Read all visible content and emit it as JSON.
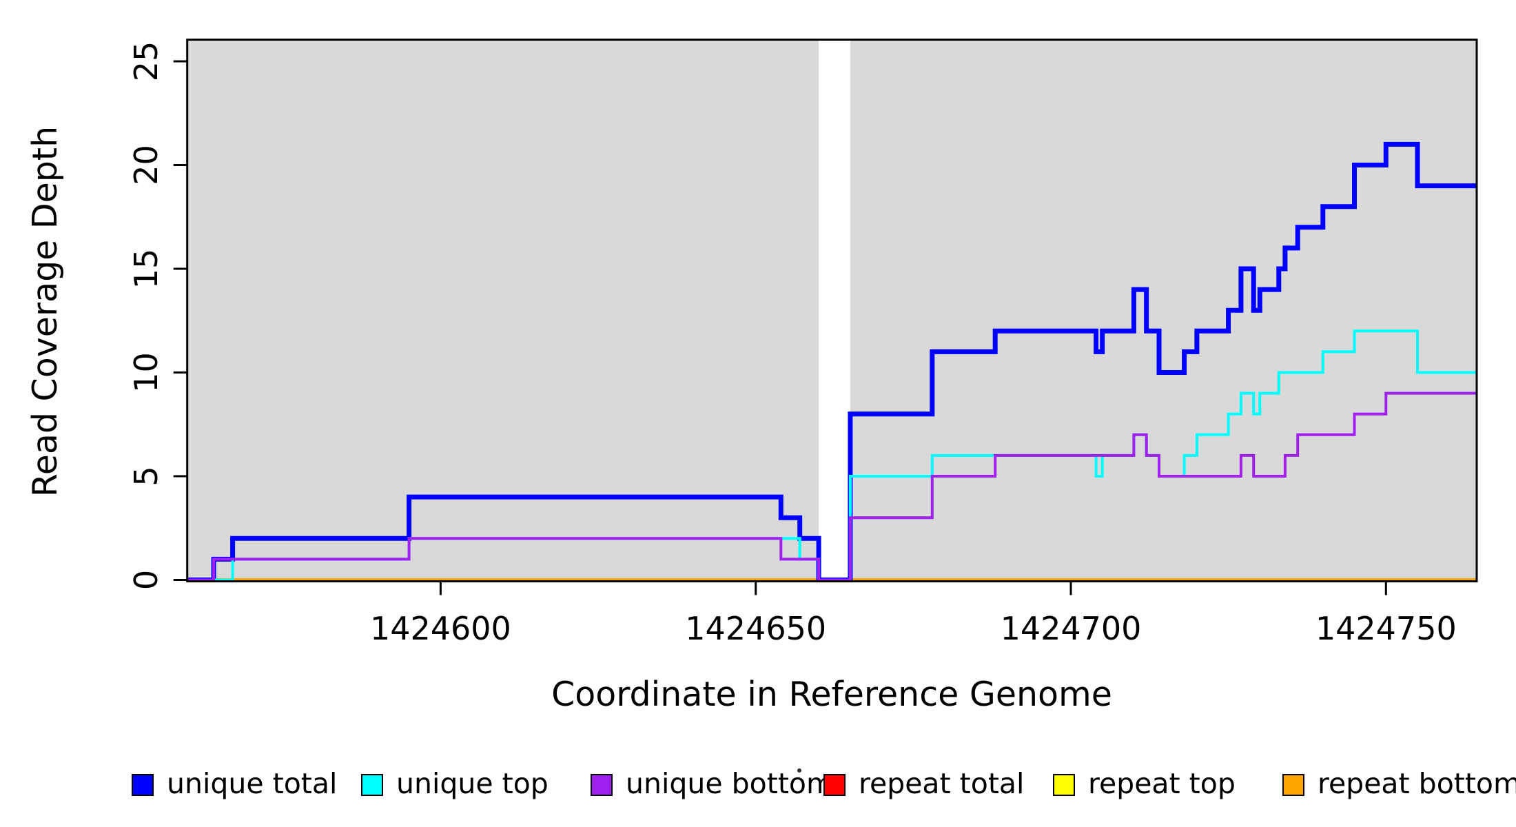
{
  "figure": {
    "background": "#FFFFFF",
    "plot_background": "#D9D9D9",
    "gap_band_color": "#FFFFFF",
    "axis_color": "#000000"
  },
  "chart_data": {
    "type": "line",
    "subtype": "step-coverage",
    "title": "",
    "xlabel": "Coordinate in Reference Genome",
    "ylabel": "Read Coverage Depth",
    "xlim": [
      1424560,
      1424764
    ],
    "ylim": [
      0,
      26
    ],
    "grid": false,
    "x_ticks": [
      1424600,
      1424650,
      1424700,
      1424750
    ],
    "x_tick_labels": [
      "1424600",
      "1424650",
      "1424700",
      "1424750"
    ],
    "y_ticks": [
      0,
      5,
      10,
      15,
      20,
      25
    ],
    "y_tick_labels": [
      "0",
      "5",
      "10",
      "15",
      "20",
      "25"
    ],
    "gap": {
      "x_start": 1424660,
      "x_end": 1424665
    },
    "draw_order": [
      "repeat total",
      "repeat top",
      "repeat bottom",
      "unique total",
      "unique top",
      "unique bottom"
    ],
    "series": [
      {
        "name": "unique total",
        "color": "#0000FF",
        "width": 7,
        "break_at_gap": false,
        "points": [
          [
            1424560,
            0
          ],
          [
            1424564,
            1
          ],
          [
            1424567,
            2
          ],
          [
            1424595,
            4
          ],
          [
            1424654,
            3
          ],
          [
            1424657,
            2
          ],
          [
            1424660,
            0
          ],
          [
            1424665,
            8
          ],
          [
            1424678,
            11
          ],
          [
            1424688,
            12
          ],
          [
            1424704,
            11
          ],
          [
            1424705,
            12
          ],
          [
            1424710,
            14
          ],
          [
            1424712,
            12
          ],
          [
            1424714,
            10
          ],
          [
            1424718,
            11
          ],
          [
            1424720,
            12
          ],
          [
            1424725,
            13
          ],
          [
            1424727,
            15
          ],
          [
            1424729,
            13
          ],
          [
            1424730,
            14
          ],
          [
            1424733,
            15
          ],
          [
            1424734,
            16
          ],
          [
            1424736,
            17
          ],
          [
            1424740,
            18
          ],
          [
            1424745,
            20
          ],
          [
            1424750,
            21
          ],
          [
            1424755,
            19
          ]
        ]
      },
      {
        "name": "unique top",
        "color": "#00FFFF",
        "width": 4,
        "break_at_gap": false,
        "points": [
          [
            1424560,
            0
          ],
          [
            1424567,
            1
          ],
          [
            1424595,
            2
          ],
          [
            1424657,
            1
          ],
          [
            1424660,
            0
          ],
          [
            1424665,
            5
          ],
          [
            1424678,
            6
          ],
          [
            1424704,
            5
          ],
          [
            1424705,
            6
          ],
          [
            1424710,
            7
          ],
          [
            1424712,
            6
          ],
          [
            1424714,
            5
          ],
          [
            1424718,
            6
          ],
          [
            1424720,
            7
          ],
          [
            1424725,
            8
          ],
          [
            1424727,
            9
          ],
          [
            1424729,
            8
          ],
          [
            1424730,
            9
          ],
          [
            1424733,
            10
          ],
          [
            1424740,
            11
          ],
          [
            1424745,
            12
          ],
          [
            1424755,
            10
          ]
        ]
      },
      {
        "name": "unique bottom",
        "color": "#A020F0",
        "width": 4,
        "break_at_gap": false,
        "points": [
          [
            1424560,
            0
          ],
          [
            1424564,
            1
          ],
          [
            1424595,
            2
          ],
          [
            1424654,
            1
          ],
          [
            1424660,
            0
          ],
          [
            1424665,
            3
          ],
          [
            1424678,
            5
          ],
          [
            1424688,
            6
          ],
          [
            1424710,
            7
          ],
          [
            1424712,
            6
          ],
          [
            1424714,
            5
          ],
          [
            1424727,
            6
          ],
          [
            1424729,
            5
          ],
          [
            1424734,
            6
          ],
          [
            1424736,
            7
          ],
          [
            1424745,
            8
          ],
          [
            1424750,
            9
          ]
        ]
      },
      {
        "name": "repeat total",
        "color": "#FF0000",
        "width": 4,
        "break_at_gap": true,
        "points": [
          [
            1424560,
            0
          ]
        ]
      },
      {
        "name": "repeat top",
        "color": "#FFFF00",
        "width": 4,
        "break_at_gap": true,
        "points": [
          [
            1424560,
            0
          ]
        ]
      },
      {
        "name": "repeat bottom",
        "color": "#FFA500",
        "width": 5,
        "break_at_gap": true,
        "points": [
          [
            1424560,
            0
          ]
        ]
      }
    ],
    "legend": [
      {
        "label": "unique total",
        "color": "#0000FF"
      },
      {
        "label": "unique top",
        "color": "#00FFFF"
      },
      {
        "label": "unique bottom",
        "color": "#A020F0"
      },
      {
        "label": "repeat total",
        "color": "#FF0000"
      },
      {
        "label": "repeat top",
        "color": "#FFFF00"
      },
      {
        "label": "repeat bottom",
        "color": "#FFA500"
      }
    ],
    "legend_position": "bottom"
  }
}
